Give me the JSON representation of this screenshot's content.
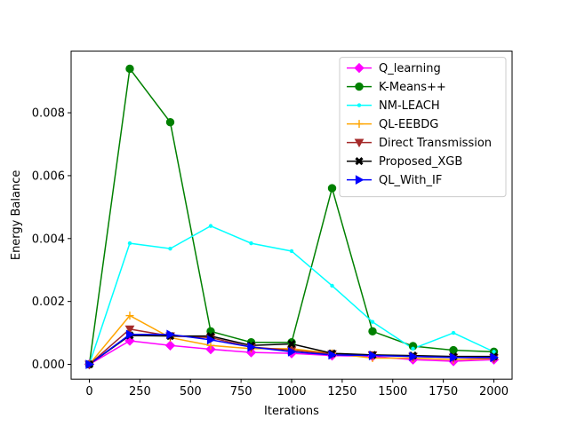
{
  "chart_data": {
    "type": "line",
    "xlabel": "Iterations",
    "ylabel": "Energy Balance",
    "xlim": [
      -90,
      2090
    ],
    "ylim": [
      -0.00047,
      0.00996
    ],
    "xticks": [
      0,
      250,
      500,
      750,
      1000,
      1250,
      1500,
      1750,
      2000
    ],
    "xtick_labels": [
      "0",
      "250",
      "500",
      "750",
      "1000",
      "1250",
      "1500",
      "1750",
      "2000"
    ],
    "yticks": [
      0,
      0.002,
      0.004,
      0.006,
      0.008
    ],
    "ytick_labels": [
      "0.000",
      "0.002",
      "0.004",
      "0.006",
      "0.008"
    ],
    "grid": false,
    "legend_position": "top-right",
    "x": [
      0,
      200,
      400,
      600,
      800,
      1000,
      1200,
      1400,
      1600,
      1800,
      2000
    ],
    "series": [
      {
        "name": "Q_learning",
        "color": "#ff00ff",
        "marker": "diamond",
        "values": [
          0.0,
          0.00075,
          0.0006,
          0.00048,
          0.00038,
          0.00035,
          0.00028,
          0.00025,
          0.00015,
          0.0001,
          0.00015
        ]
      },
      {
        "name": "K-Means++",
        "color": "#008000",
        "marker": "circle",
        "values": [
          0.0,
          0.0094,
          0.0077,
          0.00105,
          0.0007,
          0.0007,
          0.0056,
          0.00105,
          0.00058,
          0.00045,
          0.0004
        ]
      },
      {
        "name": "NM-LEACH",
        "color": "#00ffff",
        "marker": "point",
        "values": [
          0.0,
          0.00385,
          0.00368,
          0.0044,
          0.00385,
          0.0036,
          0.0025,
          0.00135,
          0.0005,
          0.001,
          0.0004
        ]
      },
      {
        "name": "QL-EEBDG",
        "color": "#ffa500",
        "marker": "plus",
        "values": [
          0.0,
          0.00155,
          0.00085,
          0.0006,
          0.0005,
          0.0005,
          0.00035,
          0.0002,
          0.0002,
          0.00015,
          0.00018
        ]
      },
      {
        "name": "Direct Transmission",
        "color": "#a52a2a",
        "marker": "triangle-down",
        "values": [
          0.0,
          0.00112,
          0.0009,
          0.00085,
          0.00055,
          0.00045,
          0.00033,
          0.0003,
          0.00025,
          0.00022,
          0.0002
        ]
      },
      {
        "name": "Proposed_XGB",
        "color": "#000000",
        "marker": "x",
        "values": [
          0.0,
          0.00092,
          0.0009,
          0.0009,
          0.0006,
          0.00065,
          0.00035,
          0.0003,
          0.00028,
          0.00025,
          0.00025
        ]
      },
      {
        "name": "QL_With_IF",
        "color": "#0000ff",
        "marker": "triangle-right",
        "values": [
          0.0,
          0.00095,
          0.00095,
          0.00078,
          0.00055,
          0.0004,
          0.0003,
          0.00028,
          0.00025,
          0.00022,
          0.00022
        ]
      }
    ]
  }
}
